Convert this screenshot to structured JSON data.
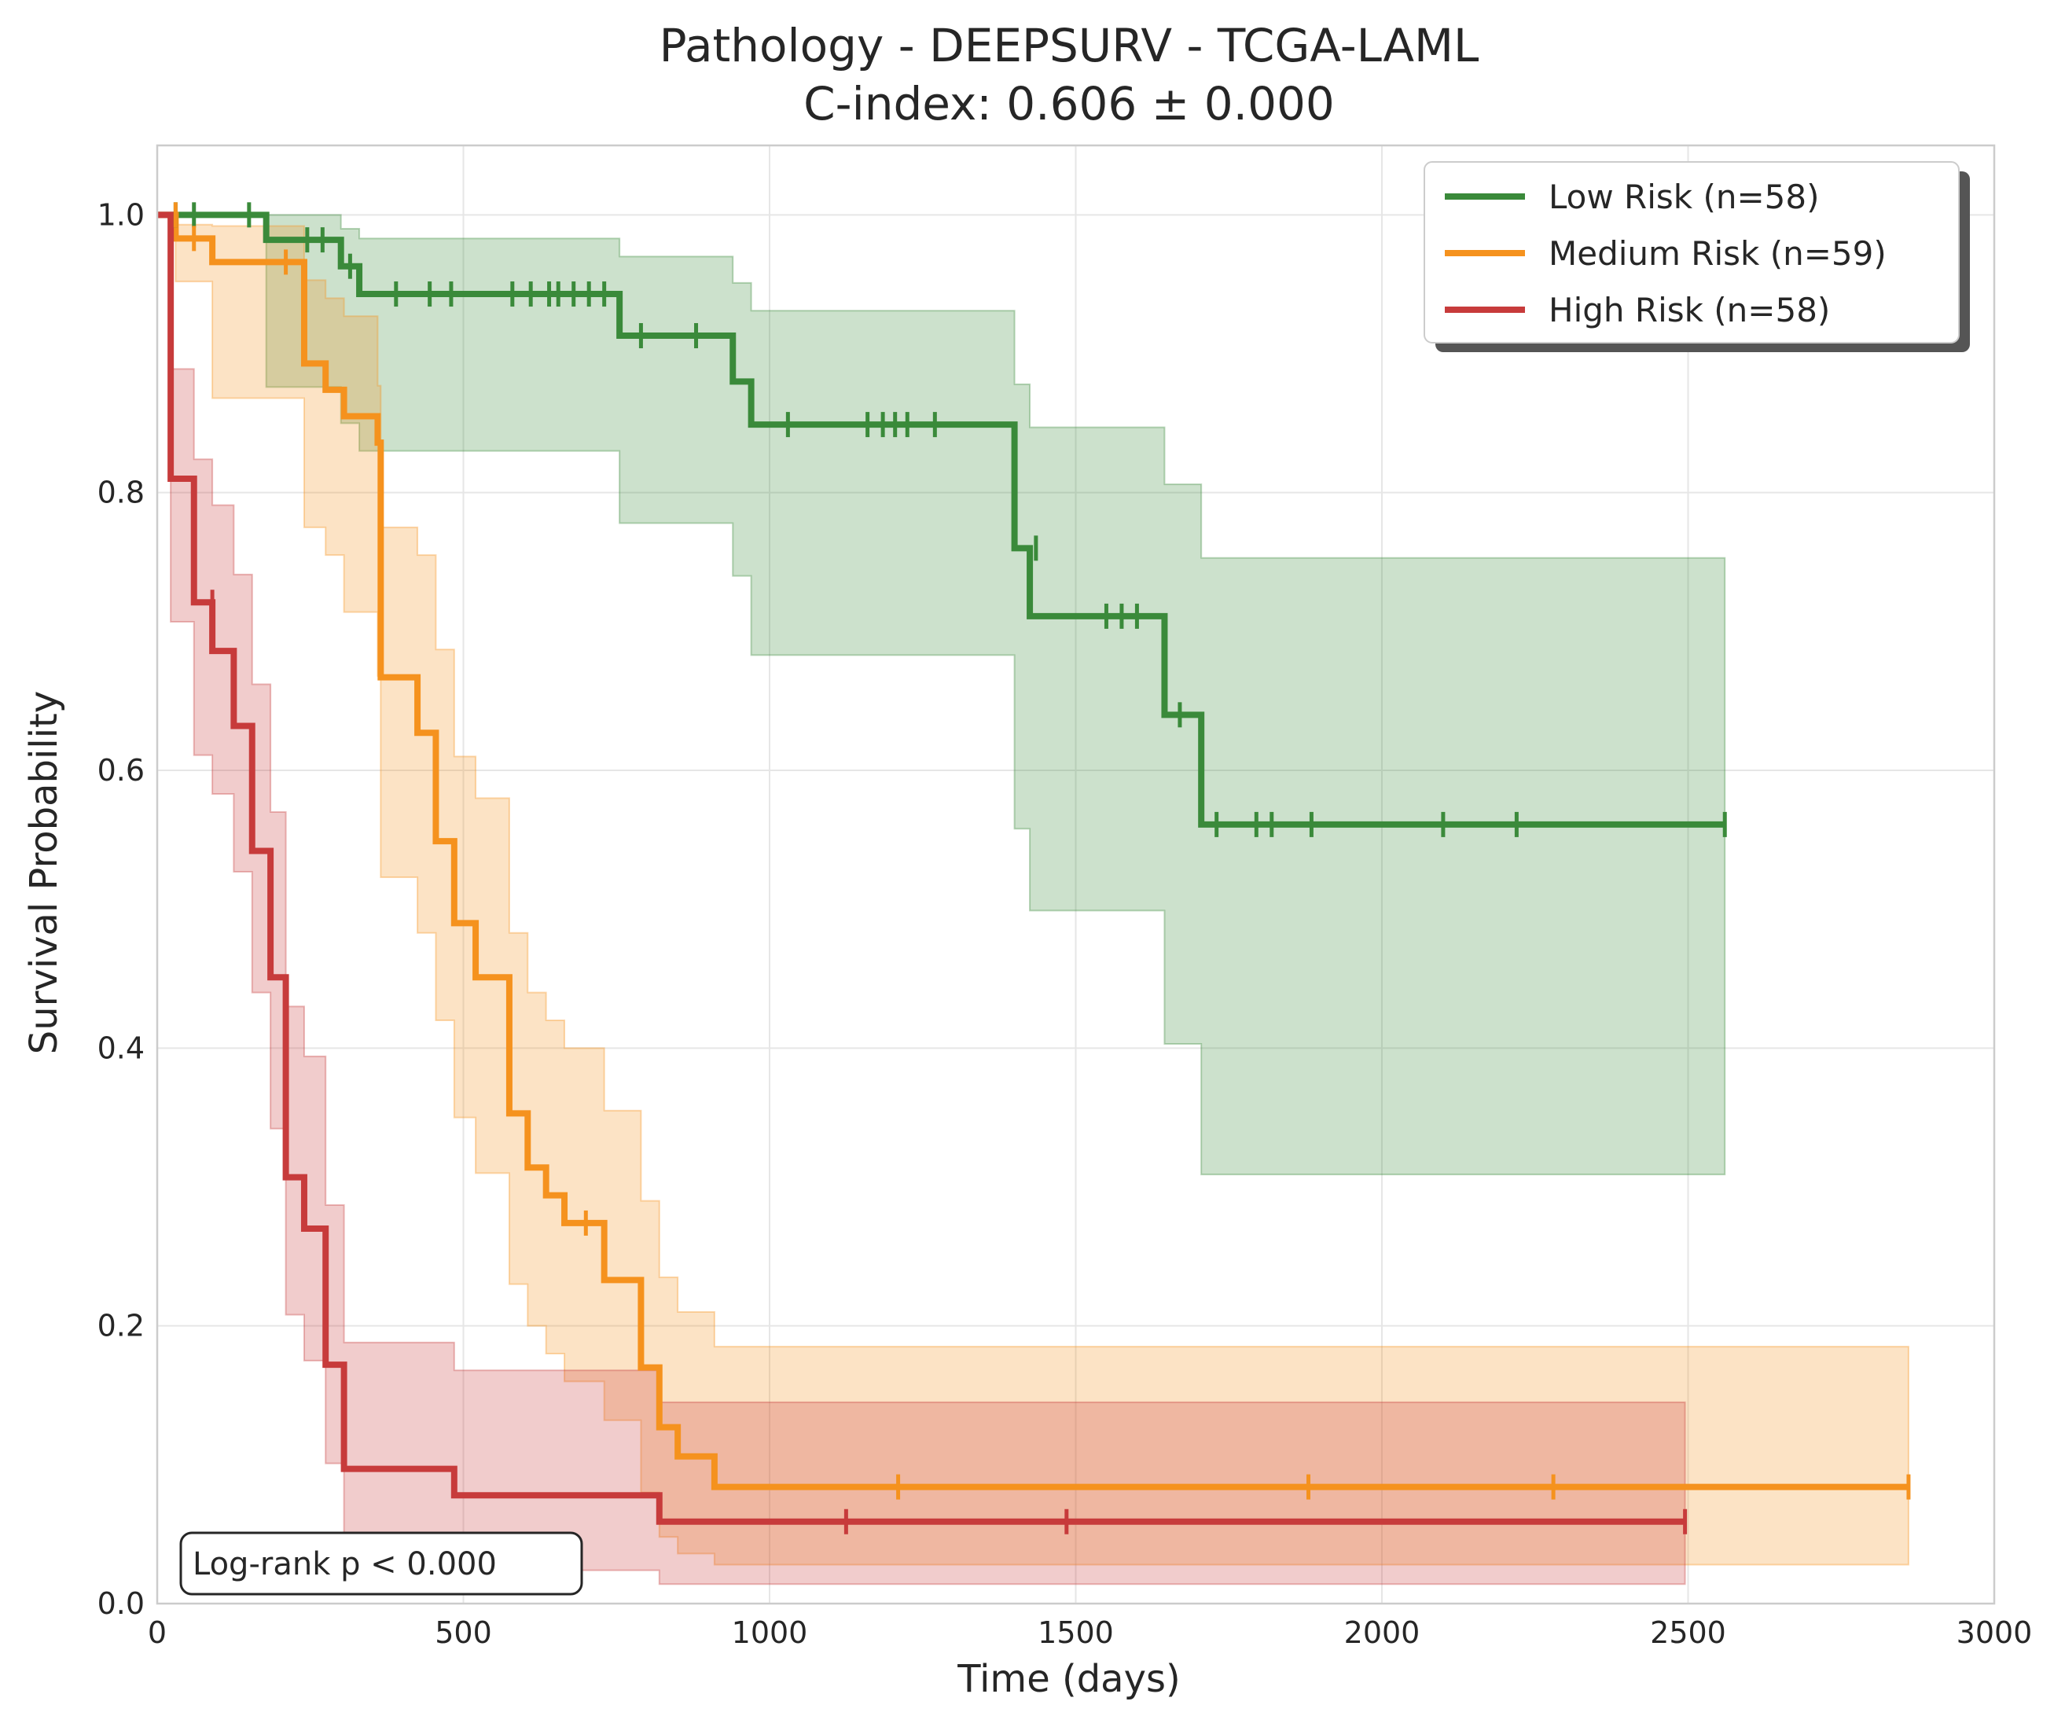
{
  "chart_data": {
    "type": "line",
    "subtype": "kaplan-meier",
    "title": "Pathology - DEEPSURV - TCGA-LAML",
    "subtitle": "C-index: 0.606 ± 0.000",
    "xlabel": "Time (days)",
    "ylabel": "Survival Probability",
    "xlim": [
      0,
      3000
    ],
    "ylim": [
      0,
      1.05
    ],
    "xticks": [
      0,
      500,
      1000,
      1500,
      2000,
      2500,
      3000
    ],
    "xtick_labels": [
      "0",
      "500",
      "1000",
      "1500",
      "2000",
      "2500",
      "3000"
    ],
    "yticks": [
      0.0,
      0.2,
      0.4,
      0.6,
      0.8,
      1.0
    ],
    "ytick_labels": [
      "0.0",
      "0.2",
      "0.4",
      "0.6",
      "0.8",
      "1.0"
    ],
    "grid": true,
    "legend_position": "top-right",
    "annotation": "Log-rank p < 0.000",
    "series": [
      {
        "name": "Low Risk (n=58)",
        "color": "#3a8a3a",
        "steps": [
          [
            0,
            1.0
          ],
          [
            178,
            0.982
          ],
          [
            300,
            0.963
          ],
          [
            330,
            0.943
          ],
          [
            755,
            0.913
          ],
          [
            940,
            0.88
          ],
          [
            970,
            0.849
          ],
          [
            1400,
            0.76
          ],
          [
            1425,
            0.711
          ],
          [
            1645,
            0.64
          ],
          [
            1705,
            0.561
          ],
          [
            2560,
            0.561
          ]
        ],
        "ci": [
          [
            0,
            1.0,
            1.0
          ],
          [
            178,
            1.0,
            0.876
          ],
          [
            300,
            0.99,
            0.85
          ],
          [
            330,
            0.983,
            0.83
          ],
          [
            755,
            0.97,
            0.778
          ],
          [
            940,
            0.951,
            0.74
          ],
          [
            970,
            0.931,
            0.683
          ],
          [
            1400,
            0.878,
            0.558
          ],
          [
            1425,
            0.847,
            0.499
          ],
          [
            1645,
            0.806,
            0.403
          ],
          [
            1705,
            0.753,
            0.309
          ],
          [
            2560,
            0.753,
            0.309
          ]
        ],
        "censored": [
          [
            30,
            1.0
          ],
          [
            60,
            1.0
          ],
          [
            150,
            1.0
          ],
          [
            245,
            0.982
          ],
          [
            270,
            0.982
          ],
          [
            315,
            0.963
          ],
          [
            390,
            0.943
          ],
          [
            445,
            0.943
          ],
          [
            480,
            0.943
          ],
          [
            580,
            0.943
          ],
          [
            610,
            0.943
          ],
          [
            640,
            0.943
          ],
          [
            655,
            0.943
          ],
          [
            680,
            0.943
          ],
          [
            705,
            0.943
          ],
          [
            730,
            0.943
          ],
          [
            790,
            0.913
          ],
          [
            880,
            0.913
          ],
          [
            1030,
            0.849
          ],
          [
            1160,
            0.849
          ],
          [
            1185,
            0.849
          ],
          [
            1205,
            0.849
          ],
          [
            1225,
            0.849
          ],
          [
            1270,
            0.849
          ],
          [
            1435,
            0.76
          ],
          [
            1550,
            0.711
          ],
          [
            1575,
            0.711
          ],
          [
            1600,
            0.711
          ],
          [
            1670,
            0.64
          ],
          [
            1730,
            0.561
          ],
          [
            1795,
            0.561
          ],
          [
            1820,
            0.561
          ],
          [
            1885,
            0.561
          ],
          [
            2100,
            0.561
          ],
          [
            2220,
            0.561
          ],
          [
            2560,
            0.561
          ]
        ]
      },
      {
        "name": "Medium Risk (n=59)",
        "color": "#f5921e",
        "steps": [
          [
            0,
            1.0
          ],
          [
            30,
            0.983
          ],
          [
            90,
            0.966
          ],
          [
            240,
            0.893
          ],
          [
            275,
            0.874
          ],
          [
            305,
            0.855
          ],
          [
            360,
            0.836
          ],
          [
            365,
            0.667
          ],
          [
            425,
            0.627
          ],
          [
            455,
            0.549
          ],
          [
            485,
            0.49
          ],
          [
            520,
            0.451
          ],
          [
            575,
            0.353
          ],
          [
            605,
            0.314
          ],
          [
            635,
            0.294
          ],
          [
            665,
            0.274
          ],
          [
            730,
            0.233
          ],
          [
            790,
            0.17
          ],
          [
            820,
            0.127
          ],
          [
            850,
            0.106
          ],
          [
            910,
            0.084
          ],
          [
            2860,
            0.084
          ]
        ],
        "ci": [
          [
            0,
            1.0,
            1.0
          ],
          [
            30,
            0.993,
            0.952
          ],
          [
            90,
            0.992,
            0.868
          ],
          [
            240,
            0.953,
            0.775
          ],
          [
            275,
            0.94,
            0.755
          ],
          [
            305,
            0.927,
            0.714
          ],
          [
            360,
            0.877,
            0.668
          ],
          [
            365,
            0.775,
            0.523
          ],
          [
            425,
            0.755,
            0.483
          ],
          [
            455,
            0.687,
            0.42
          ],
          [
            485,
            0.61,
            0.35
          ],
          [
            520,
            0.58,
            0.31
          ],
          [
            575,
            0.483,
            0.23
          ],
          [
            605,
            0.44,
            0.2
          ],
          [
            635,
            0.42,
            0.18
          ],
          [
            665,
            0.4,
            0.16
          ],
          [
            730,
            0.355,
            0.132
          ],
          [
            790,
            0.29,
            0.08
          ],
          [
            820,
            0.235,
            0.048
          ],
          [
            850,
            0.21,
            0.036
          ],
          [
            910,
            0.185,
            0.028
          ],
          [
            2860,
            0.185,
            0.028
          ]
        ],
        "censored": [
          [
            30,
            1.0
          ],
          [
            60,
            0.983
          ],
          [
            210,
            0.966
          ],
          [
            700,
            0.274
          ],
          [
            1210,
            0.084
          ],
          [
            1880,
            0.084
          ],
          [
            2280,
            0.084
          ],
          [
            2860,
            0.084
          ]
        ]
      },
      {
        "name": "High Risk (n=58)",
        "color": "#c73b3b",
        "steps": [
          [
            0,
            1.0
          ],
          [
            22,
            0.81
          ],
          [
            60,
            0.721
          ],
          [
            90,
            0.686
          ],
          [
            125,
            0.632
          ],
          [
            155,
            0.542
          ],
          [
            185,
            0.451
          ],
          [
            210,
            0.307
          ],
          [
            240,
            0.27
          ],
          [
            275,
            0.172
          ],
          [
            305,
            0.097
          ],
          [
            485,
            0.078
          ],
          [
            820,
            0.059
          ],
          [
            2495,
            0.059
          ]
        ],
        "ci": [
          [
            0,
            1.0,
            1.0
          ],
          [
            22,
            0.889,
            0.707
          ],
          [
            60,
            0.824,
            0.611
          ],
          [
            90,
            0.791,
            0.583
          ],
          [
            125,
            0.741,
            0.527
          ],
          [
            155,
            0.662,
            0.44
          ],
          [
            185,
            0.57,
            0.342
          ],
          [
            210,
            0.43,
            0.208
          ],
          [
            240,
            0.394,
            0.175
          ],
          [
            275,
            0.287,
            0.101
          ],
          [
            305,
            0.188,
            0.037
          ],
          [
            485,
            0.168,
            0.024
          ],
          [
            820,
            0.145,
            0.014
          ],
          [
            2495,
            0.145,
            0.014
          ]
        ],
        "censored": [
          [
            90,
            0.721
          ],
          [
            1125,
            0.059
          ],
          [
            1485,
            0.059
          ],
          [
            2495,
            0.059
          ]
        ]
      }
    ]
  }
}
